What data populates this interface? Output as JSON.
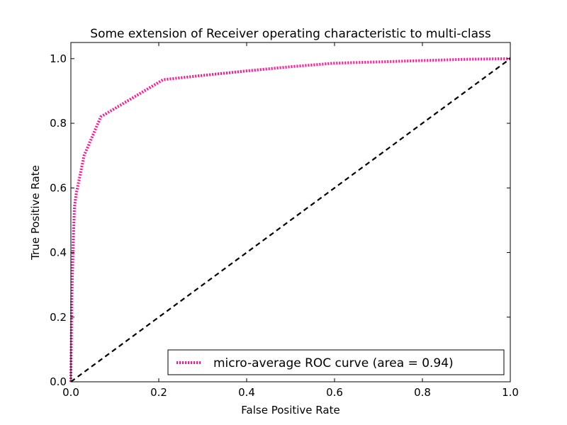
{
  "chart_data": {
    "type": "line",
    "title": "Some extension of Receiver operating characteristic to multi-class",
    "xlabel": "False Positive Rate",
    "ylabel": "True Positive Rate",
    "xlim": [
      0.0,
      1.0
    ],
    "ylim": [
      0.0,
      1.05
    ],
    "x_ticks": [
      "0.0",
      "0.2",
      "0.4",
      "0.6",
      "0.8",
      "1.0"
    ],
    "y_ticks": [
      "0.0",
      "0.2",
      "0.4",
      "0.6",
      "0.8",
      "1.0"
    ],
    "grid": false,
    "legend_position": "lower right",
    "series": [
      {
        "name": "micro-average ROC curve (area = 0.94)",
        "color": "#ff1493",
        "style": "dotted",
        "x": [
          0.0,
          0.002,
          0.005,
          0.008,
          0.012,
          0.03,
          0.068,
          0.13,
          0.21,
          0.3,
          0.4,
          0.5,
          0.6,
          0.7,
          0.8,
          0.9,
          1.0
        ],
        "y": [
          0.0,
          0.25,
          0.42,
          0.54,
          0.58,
          0.7,
          0.82,
          0.87,
          0.935,
          0.948,
          0.962,
          0.975,
          0.986,
          0.99,
          0.994,
          0.998,
          1.0
        ]
      },
      {
        "name": "",
        "color": "#000000",
        "style": "dashed",
        "x": [
          0.0,
          1.0
        ],
        "y": [
          0.0,
          1.0
        ]
      }
    ]
  }
}
